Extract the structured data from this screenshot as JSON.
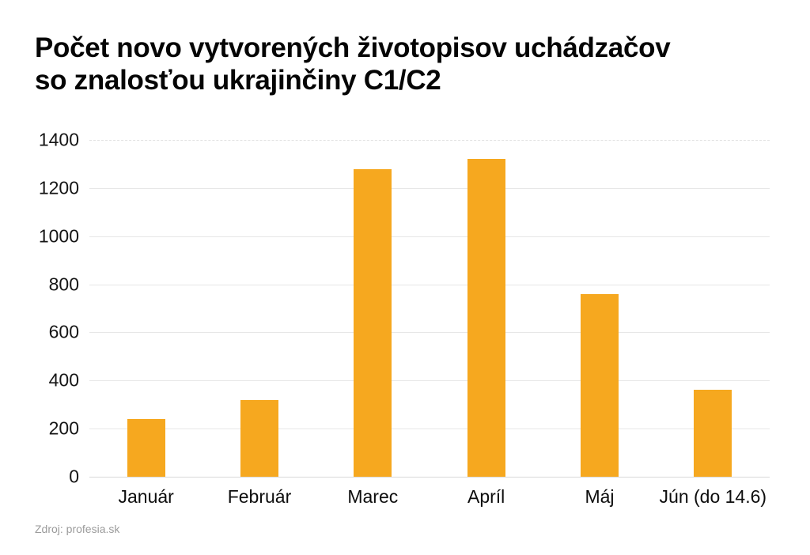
{
  "chart": {
    "title_lines": [
      "Počet novo vytvorených životopisov uchádzačov",
      "so znalosťou ukrajinčiny C1/C2"
    ],
    "source": "Zdroj: profesia.sk"
  },
  "chart_data": {
    "type": "bar",
    "title": "Počet novo vytvorených životopisov uchádzačov so znalosťou ukrajinčiny C1/C2",
    "categories": [
      "Január",
      "Február",
      "Marec",
      "Apríl",
      "Máj",
      "Jún (do 14.6)"
    ],
    "values": [
      240,
      320,
      1280,
      1320,
      760,
      360
    ],
    "xlabel": "",
    "ylabel": "",
    "ylim": [
      0,
      1400
    ],
    "yticks": [
      0,
      200,
      400,
      600,
      800,
      1000,
      1200,
      1400
    ],
    "grid": true,
    "legend": false,
    "bar_color": "#F6A81F",
    "grid_color": "#E7E7E7",
    "baseline_color": "#D9D9D9",
    "tick_label_color": "#161616",
    "title_color": "#050505",
    "source_color": "#9B9B9B",
    "source": "Zdroj: profesia.sk"
  }
}
